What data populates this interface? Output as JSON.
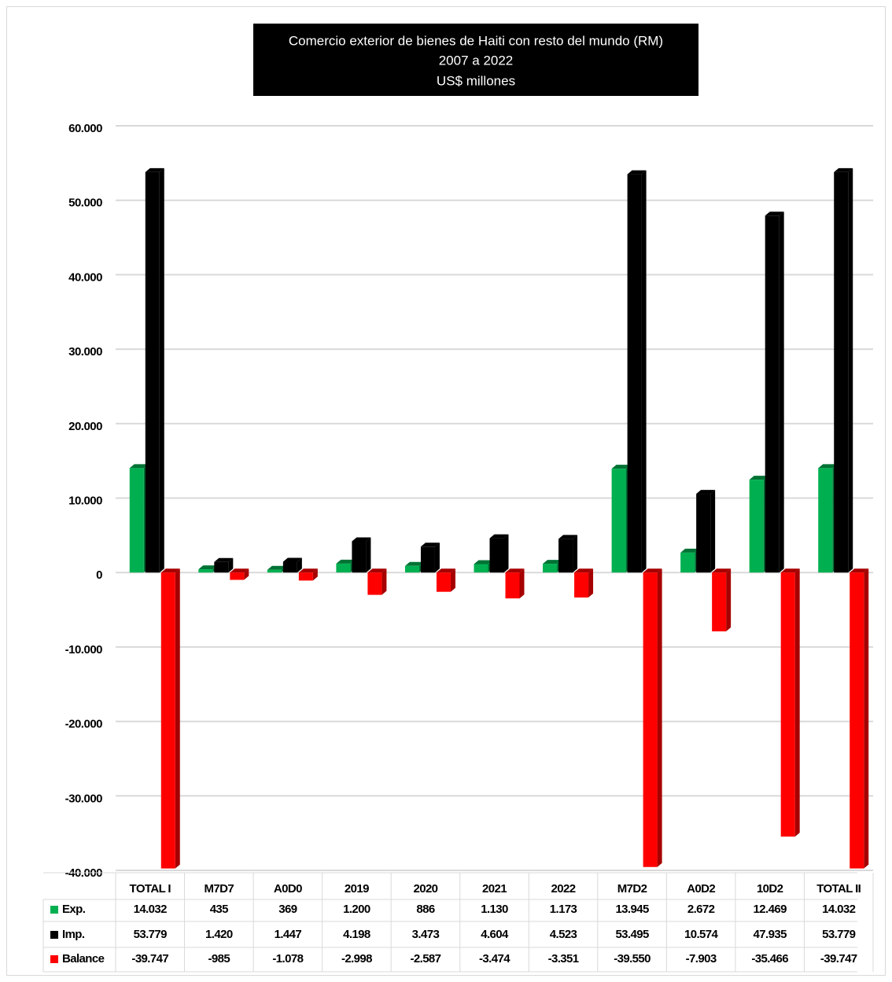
{
  "chart_data": {
    "type": "bar",
    "title": "Comercio exterior de bienes de Haiti con resto del mundo (RM)",
    "subtitle": "2007 a 2022",
    "unit_label": "US$ millones",
    "categories": [
      "TOTAL I",
      "M7D7",
      "A0D0",
      "2019",
      "2020",
      "2021",
      "2022",
      "M7D2",
      "A0D2",
      "10D2",
      "TOTAL II"
    ],
    "series": [
      {
        "name": "Exp.",
        "color": "#00b050",
        "values": [
          14032,
          435,
          369,
          1200,
          886,
          1130,
          1173,
          13945,
          2672,
          12469,
          14032
        ],
        "value_labels": [
          "14.032",
          "435",
          "369",
          "1.200",
          "886",
          "1.130",
          "1.173",
          "13.945",
          "2.672",
          "12.469",
          "14.032"
        ]
      },
      {
        "name": "Imp.",
        "color": "#000000",
        "values": [
          53779,
          1420,
          1447,
          4198,
          3473,
          4604,
          4523,
          53495,
          10574,
          47935,
          53779
        ],
        "value_labels": [
          "53.779",
          "1.420",
          "1.447",
          "4.198",
          "3.473",
          "4.604",
          "4.523",
          "53.495",
          "10.574",
          "47.935",
          "53.779"
        ]
      },
      {
        "name": "Balance",
        "color": "#ff0000",
        "values": [
          -39747,
          -985,
          -1078,
          -2998,
          -2587,
          -3474,
          -3351,
          -39550,
          -7903,
          -35466,
          -39747
        ],
        "value_labels": [
          "-39.747",
          "-985",
          "-1.078",
          "-2.998",
          "-2.587",
          "-3.474",
          "-3.351",
          "-39.550",
          "-7.903",
          "-35.466",
          "-39.747"
        ]
      }
    ],
    "ylim": [
      -40000,
      60000
    ],
    "yticks": [
      {
        "value": -40000,
        "label": "-40.000"
      },
      {
        "value": -30000,
        "label": "-30.000"
      },
      {
        "value": -20000,
        "label": "-20.000"
      },
      {
        "value": -10000,
        "label": "-10.000"
      },
      0,
      {
        "value": 10000,
        "label": "10.000"
      },
      {
        "value": 20000,
        "label": "20.000"
      },
      {
        "value": 30000,
        "label": "30.000"
      },
      {
        "value": 40000,
        "label": "40.000"
      },
      {
        "value": 50000,
        "label": "50.000"
      },
      {
        "value": 60000,
        "label": "60.000"
      }
    ],
    "grid": true,
    "data_table": true
  }
}
